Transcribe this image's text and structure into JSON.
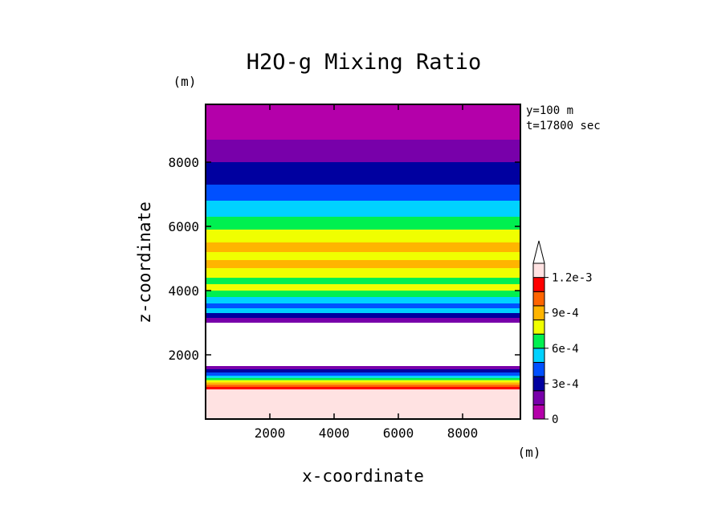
{
  "chart_data": {
    "type": "heatmap",
    "title": "H2O-g Mixing Ratio",
    "xlabel": "x-coordinate",
    "ylabel": "z-coordinate",
    "x_unit": "(m)",
    "y_unit": "(m)",
    "xlim": [
      0,
      9800
    ],
    "ylim": [
      0,
      9800
    ],
    "xticks": [
      "2000",
      "4000",
      "6000",
      "8000"
    ],
    "yticks": [
      "2000",
      "4000",
      "6000",
      "8000"
    ],
    "xtick_values": [
      2000,
      4000,
      6000,
      8000
    ],
    "ytick_values": [
      2000,
      4000,
      6000,
      8000
    ],
    "annotations": [
      "y=100 m",
      "t=17800 sec"
    ],
    "colorbar": {
      "levels": [
        0,
        0.00015,
        0.0003,
        0.00045,
        0.0006,
        0.00075,
        0.0009,
        0.00105,
        0.0012
      ],
      "labels": [
        "0",
        "3e-4",
        "6e-4",
        "9e-4",
        "1.2e-3"
      ],
      "label_values": [
        0,
        0.0003,
        0.0006,
        0.0009,
        0.0012
      ],
      "colors": [
        "#b400aa",
        "#7800aa",
        "#0000a0",
        "#0050ff",
        "#00d2ff",
        "#00f050",
        "#f0ff00",
        "#ffb400",
        "#ff6400",
        "#ff0000",
        "#ffe2e2"
      ],
      "extend_max": true
    },
    "bands": [
      {
        "z": [
          9800,
          8700
        ],
        "color": "#b400aa"
      },
      {
        "z": [
          8700,
          8000
        ],
        "color": "#7800aa"
      },
      {
        "z": [
          8000,
          7300
        ],
        "color": "#0000a0"
      },
      {
        "z": [
          7300,
          6800
        ],
        "color": "#0050ff"
      },
      {
        "z": [
          6800,
          6300
        ],
        "color": "#00d2ff"
      },
      {
        "z": [
          6300,
          5900
        ],
        "color": "#00f050"
      },
      {
        "z": [
          5900,
          5500
        ],
        "color": "#f0ff00"
      },
      {
        "z": [
          5500,
          5200
        ],
        "color": "#ffb400"
      },
      {
        "z": [
          5200,
          4950
        ],
        "color": "#f0ff00"
      },
      {
        "z": [
          4950,
          4700
        ],
        "color": "#ffb400"
      },
      {
        "z": [
          4700,
          4400
        ],
        "color": "#f0ff00"
      },
      {
        "z": [
          4400,
          4200
        ],
        "color": "#00f050"
      },
      {
        "z": [
          4200,
          4000
        ],
        "color": "#f0ff00"
      },
      {
        "z": [
          4000,
          3800
        ],
        "color": "#00f050"
      },
      {
        "z": [
          3800,
          3600
        ],
        "color": "#00d2ff"
      },
      {
        "z": [
          3600,
          3450
        ],
        "color": "#0050ff"
      },
      {
        "z": [
          3450,
          3300
        ],
        "color": "#00d2ff"
      },
      {
        "z": [
          3300,
          3150
        ],
        "color": "#0000a0"
      },
      {
        "z": [
          3150,
          3000
        ],
        "color": "#7800aa"
      },
      {
        "z": [
          3000,
          1650
        ],
        "color": "#ffffff"
      },
      {
        "z": [
          1650,
          1550
        ],
        "color": "#7800aa"
      },
      {
        "z": [
          1550,
          1450
        ],
        "color": "#0000a0"
      },
      {
        "z": [
          1450,
          1350
        ],
        "color": "#0050ff"
      },
      {
        "z": [
          1350,
          1280
        ],
        "color": "#00d2ff"
      },
      {
        "z": [
          1280,
          1210
        ],
        "color": "#00f050"
      },
      {
        "z": [
          1210,
          1140
        ],
        "color": "#f0ff00"
      },
      {
        "z": [
          1140,
          1070
        ],
        "color": "#ffb400"
      },
      {
        "z": [
          1070,
          1000
        ],
        "color": "#ff6400"
      },
      {
        "z": [
          1000,
          920
        ],
        "color": "#ff0000"
      },
      {
        "z": [
          920,
          0
        ],
        "color": "#ffe2e2"
      }
    ],
    "grid": false
  }
}
